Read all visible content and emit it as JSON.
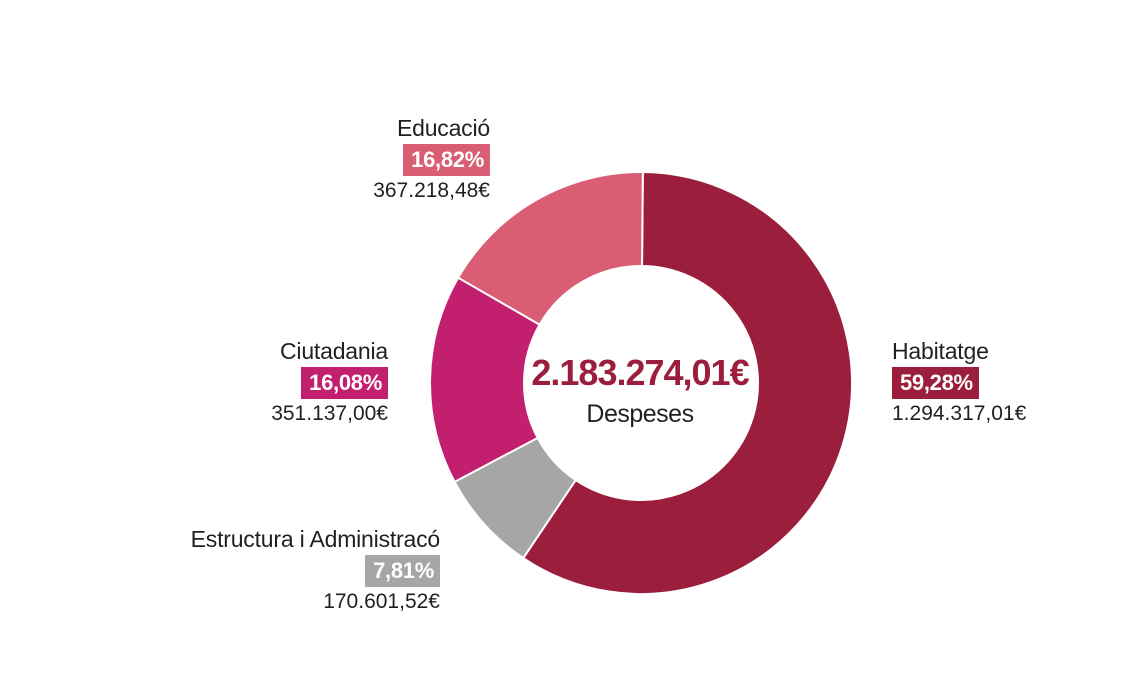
{
  "chart_data": {
    "type": "pie",
    "variant": "donut",
    "center": {
      "total": "2.183.274,01€",
      "label": "Despeses"
    },
    "slices": [
      {
        "name": "Habitatge",
        "percent_label": "59,28%",
        "value": 59.28,
        "amount": "1.294.317,01€",
        "color": "#9b1f3c",
        "label_side": "right"
      },
      {
        "name": "Estructura i Administracó",
        "percent_label": "7,81%",
        "value": 7.81,
        "amount": "170.601,52€",
        "color": "#a6a6a6",
        "label_side": "left"
      },
      {
        "name": "Ciutadania",
        "percent_label": "16,08%",
        "value": 16.08,
        "amount": "351.137,00€",
        "color": "#c2206f",
        "label_side": "left"
      },
      {
        "name": "Educació",
        "percent_label": "16,82%",
        "value": 16.82,
        "amount": "367.218,48€",
        "color": "#d95e73",
        "label_side": "left"
      }
    ]
  }
}
